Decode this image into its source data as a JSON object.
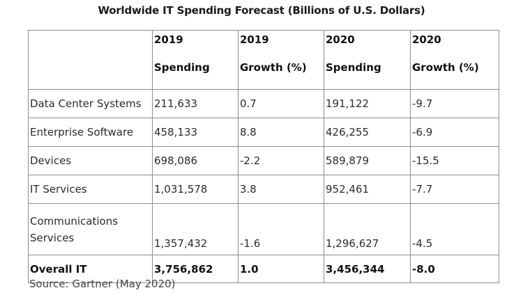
{
  "title": "Worldwide IT Spending Forecast (Billions of U.S. Dollars)",
  "table": {
    "headers": [
      {
        "year": "",
        "kind": ""
      },
      {
        "year": "2019",
        "kind": "Spending"
      },
      {
        "year": "2019",
        "kind": "Growth (%)"
      },
      {
        "year": "2020",
        "kind": "Spending"
      },
      {
        "year": "2020",
        "kind": "Growth (%)"
      }
    ],
    "rows": [
      {
        "name": "Data Center Systems",
        "s2019": "211,633",
        "g2019": "0.7",
        "s2020": "191,122",
        "g2020": "-9.7"
      },
      {
        "name": "Enterprise Software",
        "s2019": "458,133",
        "g2019": "8.8",
        "s2020": "426,255",
        "g2020": "-6.9"
      },
      {
        "name": "Devices",
        "s2019": "698,086",
        "g2019": "-2.2",
        "s2020": "589,879",
        "g2020": "-15.5"
      },
      {
        "name": "IT Services",
        "s2019": "1,031,578",
        "g2019": "3.8",
        "s2020": "952,461",
        "g2020": "-7.7"
      },
      {
        "name": "Communications Services",
        "s2019": "1,357,432",
        "g2019": "-1.6",
        "s2020": "1,296,627",
        "g2020": "-4.5"
      }
    ],
    "total": {
      "name": "Overall IT",
      "s2019": "3,756,862",
      "g2019": "1.0",
      "s2020": "3,456,344",
      "g2020": "-8.0"
    }
  },
  "source": "Source: Gartner (May 2020)"
}
